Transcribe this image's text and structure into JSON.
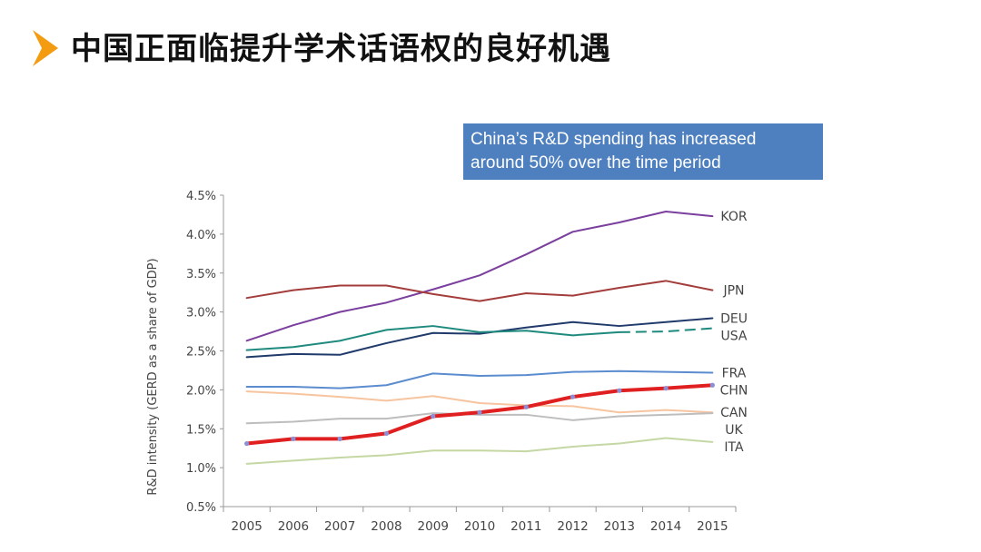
{
  "slide": {
    "title": "中国正面临提升学术话语权的良好机遇",
    "accent_color": "#f39c12"
  },
  "callout": {
    "lines": [
      "China’s R&D spending has increased",
      "around 50% over the time period"
    ],
    "background": "#4e7fbf"
  },
  "chart_data": {
    "type": "line",
    "title": "",
    "xlabel": "",
    "ylabel": "R&D intensity (GERD as a share of GDP)",
    "x": [
      2005,
      2006,
      2007,
      2008,
      2009,
      2010,
      2011,
      2012,
      2013,
      2014,
      2015
    ],
    "ylim": [
      0.5,
      4.5
    ],
    "yticks": [
      0.5,
      1.0,
      1.5,
      2.0,
      2.5,
      3.0,
      3.5,
      4.0,
      4.5
    ],
    "ytick_labels": [
      "0.5%",
      "1.0%",
      "1.5%",
      "2.0%",
      "2.5%",
      "3.0%",
      "3.5%",
      "4.0%",
      "4.5%"
    ],
    "grid": false,
    "legend": "end-of-line labels",
    "series": [
      {
        "name": "KOR",
        "color": "#7b3f9e",
        "values": [
          2.63,
          2.83,
          3.0,
          3.12,
          3.29,
          3.47,
          3.74,
          4.03,
          4.15,
          4.29,
          4.23
        ]
      },
      {
        "name": "JPN",
        "color": "#a33d3b",
        "values": [
          3.18,
          3.28,
          3.34,
          3.34,
          3.23,
          3.14,
          3.24,
          3.21,
          3.31,
          3.4,
          3.28
        ]
      },
      {
        "name": "DEU",
        "color": "#1f3a6b",
        "values": [
          2.42,
          2.46,
          2.45,
          2.6,
          2.73,
          2.72,
          2.8,
          2.87,
          2.82,
          2.87,
          2.92
        ]
      },
      {
        "name": "USA",
        "color": "#1e8a7e",
        "values": [
          2.51,
          2.55,
          2.63,
          2.77,
          2.82,
          2.74,
          2.76,
          2.7,
          2.74,
          2.75,
          2.79
        ],
        "dashed_from": 2013
      },
      {
        "name": "FRA",
        "color": "#5b8ccf",
        "values": [
          2.04,
          2.04,
          2.02,
          2.06,
          2.21,
          2.18,
          2.19,
          2.23,
          2.24,
          2.23,
          2.22
        ]
      },
      {
        "name": "CHN",
        "color": "#e02020",
        "highlight": true,
        "values": [
          1.31,
          1.37,
          1.37,
          1.44,
          1.66,
          1.71,
          1.78,
          1.91,
          1.99,
          2.02,
          2.06
        ]
      },
      {
        "name": "CAN",
        "color": "#f7c4a0",
        "values": [
          1.98,
          1.95,
          1.91,
          1.86,
          1.92,
          1.83,
          1.8,
          1.79,
          1.71,
          1.74,
          1.71
        ]
      },
      {
        "name": "UK",
        "color": "#bdbdbd",
        "values": [
          1.57,
          1.59,
          1.63,
          1.63,
          1.7,
          1.68,
          1.68,
          1.61,
          1.66,
          1.68,
          1.7
        ]
      },
      {
        "name": "ITA",
        "color": "#c5d8a4",
        "values": [
          1.05,
          1.09,
          1.13,
          1.16,
          1.22,
          1.22,
          1.21,
          1.27,
          1.31,
          1.38,
          1.33
        ]
      }
    ]
  }
}
